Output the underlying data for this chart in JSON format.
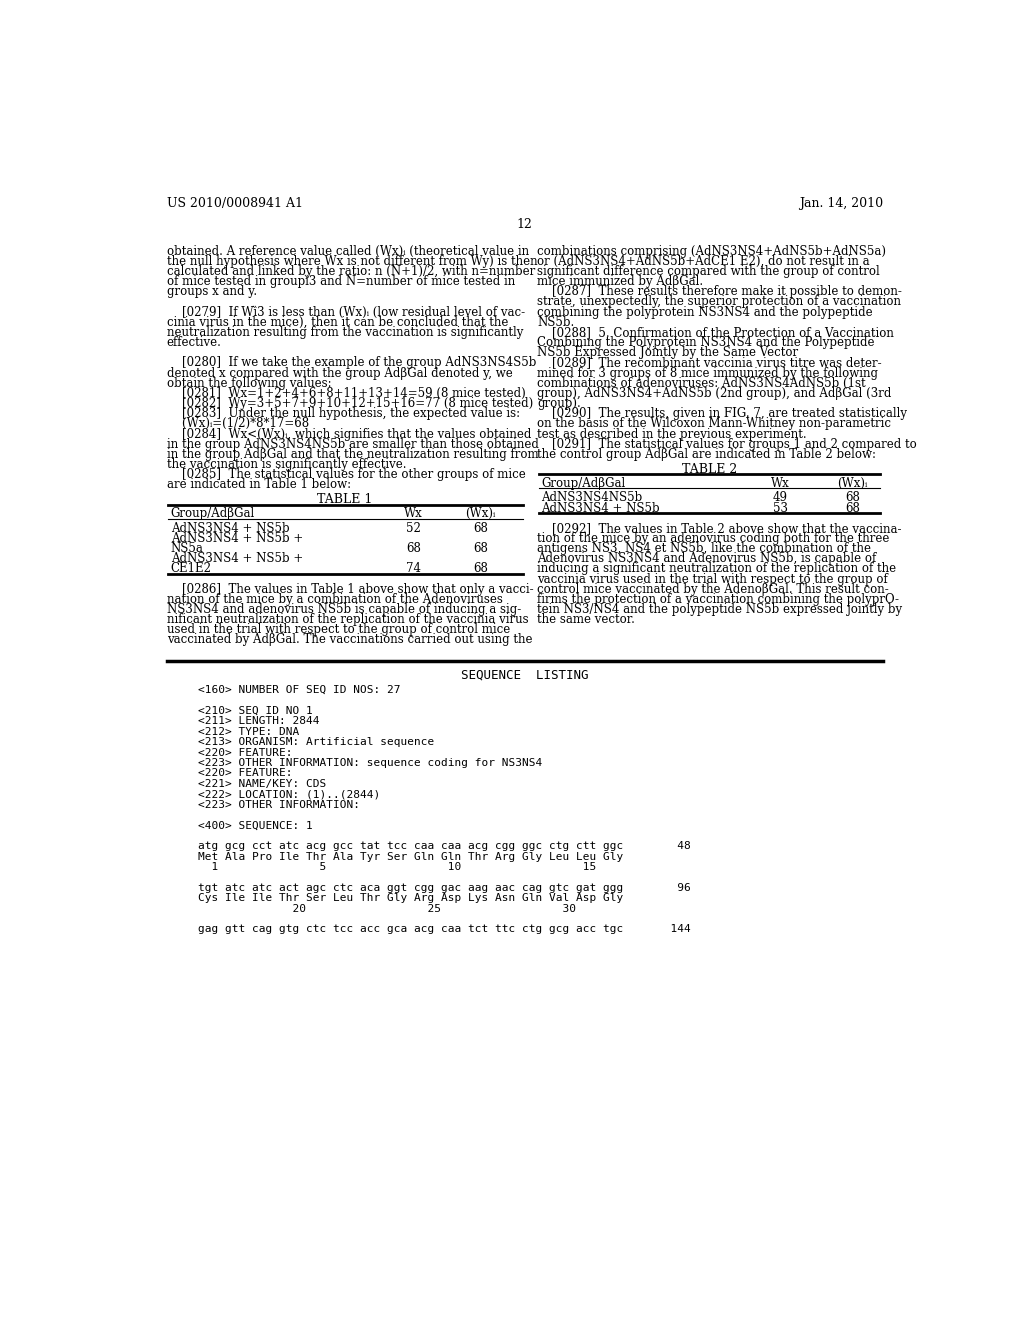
{
  "header_left": "US 2010/0008941 A1",
  "header_right": "Jan. 14, 2010",
  "page_number": "12",
  "bg_color": "#ffffff",
  "text_color": "#000000",
  "table1_title": "TABLE 1",
  "table2_title": "TABLE 2",
  "seq_listing_label": "SEQUENCE  LISTING",
  "left_texts": [
    "obtained. A reference value called (Wx)ᵢ (theoretical value in",
    "the null hypothesis where Wx is not different from Wy) is then",
    "calculated and linked by the ratio: n (N+1)/2, with n=number",
    "of mice tested in groupȉ3 and N=number of mice tested in",
    "groups x and y.",
    "",
    "    [0279]  If Wȉ3 is less than (Wx)ᵢ (low residual level of vac-",
    "cinia virus in the mice), then it can be concluded that the",
    "neutralization resulting from the vaccination is significantly",
    "effective.",
    "",
    "    [0280]  If we take the example of the group AdNS3NS4S5b",
    "denoted x compared with the group AdβGal denoted y, we",
    "obtain the following values:",
    "    [0281]  Wx=1+2+4+6+8+11+13+14=59 (8 mice tested)",
    "    [0282]  Wy=3+5+7+9+10+12+15+16=77 (8 mice tested)",
    "    [0283]  Under the null hypothesis, the expected value is:",
    "    (Wx)ᵢ=(1/2)*8*17=68",
    "    [0284]  Wx<(Wx)ᵢ, which signifies that the values obtained",
    "in the group AdNS3NS4NS5b are smaller than those obtained",
    "in the group AdβGal and that the neutralization resulting from",
    "the vaccination is significantly effective.",
    "    [0285]  The statistical values for the other groups of mice",
    "are indicated in Table 1 below:"
  ],
  "right_texts": [
    "combinations comprising (AdNS3NS4+AdNS5b+AdNS5a)",
    "or (AdNS3NS4+AdNS5b+AdCE1 E2), do not result in a",
    "significant difference compared with the group of control",
    "mice immunized by AdβGal.",
    "    [0287]  These results therefore make it possible to demon-",
    "strate, unexpectedly, the superior protection of a vaccination",
    "combining the polyprotein NS3NS4 and the polypeptide",
    "NS5b.",
    "    [0288]  5. Confirmation of the Protection of a Vaccination",
    "Combining the Polyprotein NS3NS4 and the Polypeptide",
    "NS5b Expressed Jointly by the Same Vector",
    "    [0289]  The recombinant vaccinia virus titre was deter-",
    "mined for 3 groups of 8 mice immunized by the following",
    "combinations of adenoviruses: AdNS3NS4AdNS5b (1st",
    "group), AdNS3NS4+AdNS5b (2nd group), and AdβGal (3rd",
    "group).",
    "    [0290]  The results, given in FIG. 7, are treated statistically",
    "on the basis of the Wilcoxon Mann-Whitney non-parametric",
    "test as described in the previous experiment.",
    "    [0291]  The statistical values for groups 1 and 2 compared to",
    "the control group AdβGal are indicated in Table 2 below:"
  ],
  "table1_rows": [
    [
      "AdNS3NS4 + NS5b",
      "52",
      "68"
    ],
    [
      "AdNS3NS4 + NS5b +",
      "",
      ""
    ],
    [
      "NS5a",
      "68",
      "68"
    ],
    [
      "AdNS3NS4 + NS5b +",
      "",
      ""
    ],
    [
      "CE1E2",
      "74",
      "68"
    ]
  ],
  "table2_rows": [
    [
      "AdNS3NS4NS5b",
      "49",
      "68"
    ],
    [
      "AdNS3NS4 + NS5b",
      "53",
      "68"
    ]
  ],
  "para286_lines": [
    "    [0286]  The values in Table 1 above show that only a vacci-",
    "nation of the mice by a combination of the Adenoviruses",
    "NS3NS4 and adenovirus NS5b is capable of inducing a sig-",
    "nificant neutralization of the replication of the vaccinia virus",
    "used in the trial with respect to the group of control mice",
    "vaccinated by AdβGal. The vaccinations carried out using the"
  ],
  "para292_lines": [
    "    [0292]  The values in Table 2 above show that the vaccina-",
    "tion of the mice by an adenovirus coding both for the three",
    "antigens NS3, NS4 et NS5b, like the combination of the",
    "Adenovirus NS3NS4 and Adenovirus NS5b, is capable of",
    "inducing a significant neutralization of the replication of the",
    "vaccinia virus used in the trial with respect to the group of",
    "control mice vaccinated by the AdenoβGal. This result con-",
    "firms the protection of a vaccination combining the polyprO-",
    "tein NS3/NS4 and the polypeptide NS5b expressed jointly by",
    "the same vector."
  ],
  "seq_lines": [
    "<160> NUMBER OF SEQ ID NOS: 27",
    "",
    "<210> SEQ ID NO 1",
    "<211> LENGTH: 2844",
    "<212> TYPE: DNA",
    "<213> ORGANISM: Artificial sequence",
    "<220> FEATURE:",
    "<223> OTHER INFORMATION: sequence coding for NS3NS4",
    "<220> FEATURE:",
    "<221> NAME/KEY: CDS",
    "<222> LOCATION: (1)..(2844)",
    "<223> OTHER INFORMATION:",
    "",
    "<400> SEQUENCE: 1",
    "",
    "atg gcg cct atc acg gcc tat tcc caa caa acg cgg ggc ctg ctt ggc        48",
    "Met Ala Pro Ile Thr Ala Tyr Ser Gln Gln Thr Arg Gly Leu Leu Gly",
    "  1               5                  10                  15",
    "",
    "tgt atc atc act agc ctc aca ggt cgg gac aag aac cag gtc gat ggg        96",
    "Cys Ile Ile Thr Ser Leu Thr Gly Arg Asp Lys Asn Gln Val Asp Gly",
    "              20                  25                  30",
    "",
    "gag gtt cag gtg ctc tcc acc gca acg caa tct ttc ctg gcg acc tgc       144"
  ]
}
